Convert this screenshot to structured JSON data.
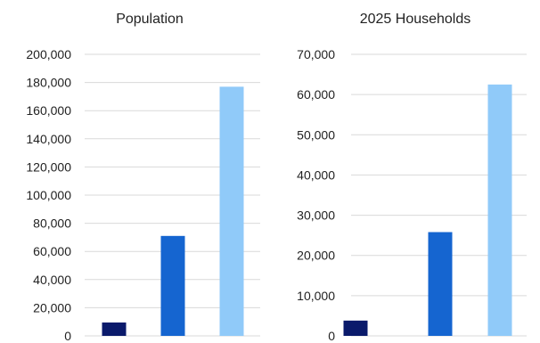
{
  "chart_data": [
    {
      "type": "bar",
      "title": "Population",
      "xlabel": "",
      "ylabel": "",
      "categories": [
        "",
        "",
        ""
      ],
      "values": [
        9500,
        71000,
        177000
      ],
      "bar_colors": [
        "#0a1a6b",
        "#1565d0",
        "#90caf9"
      ],
      "ylim": [
        0,
        200000
      ],
      "yticks": [
        0,
        20000,
        40000,
        60000,
        80000,
        100000,
        120000,
        140000,
        160000,
        180000,
        200000
      ],
      "ytick_labels": [
        "0",
        "20,000",
        "40,000",
        "60,000",
        "80,000",
        "100,000",
        "120,000",
        "140,000",
        "160,000",
        "180,000",
        "200,000"
      ],
      "grid": true,
      "legend": "none"
    },
    {
      "type": "bar",
      "title": "2025 Households",
      "xlabel": "",
      "ylabel": "",
      "categories": [
        "",
        "",
        ""
      ],
      "values": [
        3800,
        25800,
        62500
      ],
      "bar_colors": [
        "#0a1a6b",
        "#1565d0",
        "#90caf9"
      ],
      "ylim": [
        0,
        70000
      ],
      "yticks": [
        0,
        10000,
        20000,
        30000,
        40000,
        50000,
        60000,
        70000
      ],
      "ytick_labels": [
        "0",
        "10,000",
        "20,000",
        "30,000",
        "40,000",
        "50,000",
        "60,000",
        "70,000"
      ],
      "grid": true,
      "legend": "none"
    }
  ]
}
